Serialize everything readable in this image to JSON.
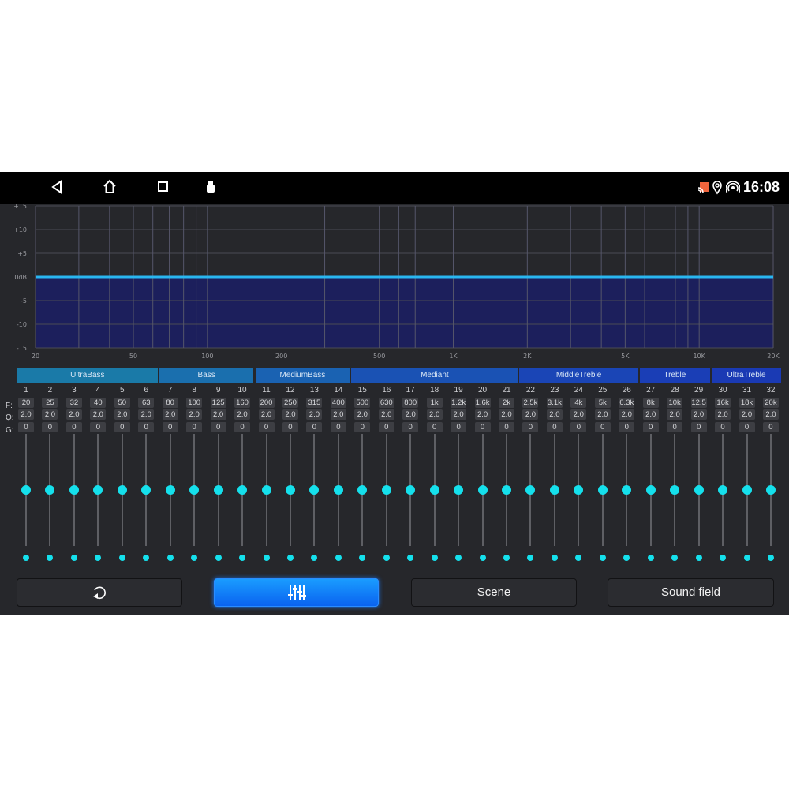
{
  "status_bar": {
    "time": "16:08",
    "icons": [
      "back-icon",
      "home-icon",
      "recents-icon",
      "usb-icon",
      "cast-icon",
      "location-icon",
      "hotspot-icon"
    ],
    "cast_color": "#f0643c"
  },
  "graph": {
    "y_ticks": [
      "+15",
      "+10",
      "+5",
      "0dB",
      "-5",
      "-10",
      "-15"
    ],
    "x_ticks": [
      {
        "f": 20,
        "label": "20"
      },
      {
        "f": 50,
        "label": "50"
      },
      {
        "f": 100,
        "label": "100"
      },
      {
        "f": 200,
        "label": "200"
      },
      {
        "f": 500,
        "label": "500"
      },
      {
        "f": 1000,
        "label": "1K"
      },
      {
        "f": 2000,
        "label": "2K"
      },
      {
        "f": 5000,
        "label": "5K"
      },
      {
        "f": 10000,
        "label": "10K"
      },
      {
        "f": 20000,
        "label": "20K"
      }
    ],
    "grid_freqs": [
      30,
      40,
      50,
      60,
      70,
      80,
      90,
      100,
      300,
      500,
      600,
      700,
      1000,
      2000,
      3000,
      4000,
      5000,
      6000,
      8000,
      9000,
      10000
    ],
    "curve_db": 0,
    "ylim": [
      -15,
      15
    ],
    "xlim": [
      20,
      20000
    ],
    "line_color": "#29b6f0",
    "fill_color": "#1c1f5c"
  },
  "bands": [
    {
      "name": "UltraBass",
      "from": 1,
      "to": 6
    },
    {
      "name": "Bass",
      "from": 7,
      "to": 10
    },
    {
      "name": "MediumBass",
      "from": 11,
      "to": 14
    },
    {
      "name": "Mediant",
      "from": 15,
      "to": 21
    },
    {
      "name": "MiddleTreble",
      "from": 22,
      "to": 26
    },
    {
      "name": "Treble",
      "from": 27,
      "to": 29
    },
    {
      "name": "UltraTreble",
      "from": 30,
      "to": 32
    }
  ],
  "row_labels": {
    "f": "F:",
    "q": "Q:",
    "g": "G:"
  },
  "channels": {
    "numbers": [
      "1",
      "2",
      "3",
      "4",
      "5",
      "6",
      "7",
      "8",
      "9",
      "10",
      "11",
      "12",
      "13",
      "14",
      "15",
      "16",
      "17",
      "18",
      "19",
      "20",
      "21",
      "22",
      "23",
      "24",
      "25",
      "26",
      "27",
      "28",
      "29",
      "30",
      "31",
      "32"
    ],
    "freq": [
      "20",
      "25",
      "32",
      "40",
      "50",
      "63",
      "80",
      "100",
      "125",
      "160",
      "200",
      "250",
      "315",
      "400",
      "500",
      "630",
      "800",
      "1k",
      "1.2k",
      "1.6k",
      "2k",
      "2.5k",
      "3.1k",
      "4k",
      "5k",
      "6.3k",
      "8k",
      "10k",
      "12.5",
      "16k",
      "18k",
      "20k"
    ],
    "q": "2.0",
    "gain": "0",
    "gain_range": [
      -15,
      15
    ]
  },
  "buttons": [
    {
      "icon": "reset-icon"
    },
    {
      "icon": "equalizer-icon",
      "active": true
    },
    {
      "label": "Scene"
    },
    {
      "label": "Sound field"
    }
  ]
}
